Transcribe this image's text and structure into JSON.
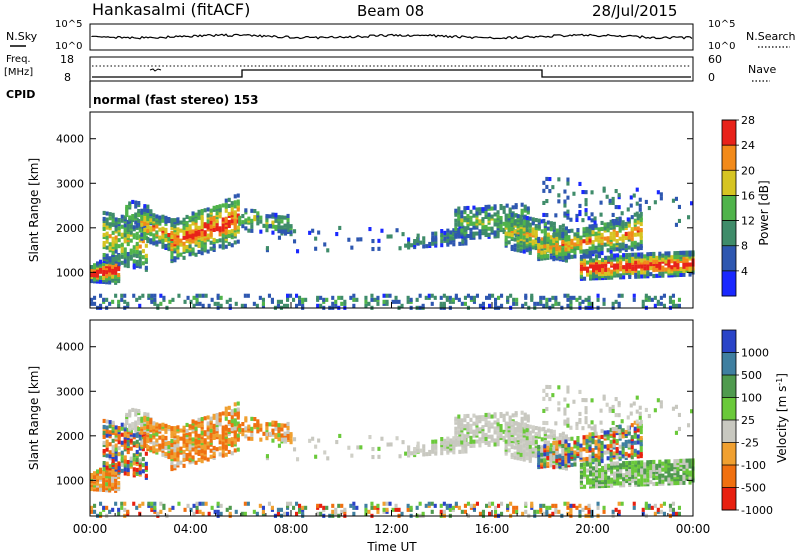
{
  "header": {
    "station": "Hankasalmi (fitACF)",
    "beam": "Beam 08",
    "date": "28/Jul/2015"
  },
  "noise_panel": {
    "left_label": "N.Sky",
    "right_label": "N.Search",
    "left_ticks": [
      "10^5",
      "10^0"
    ],
    "right_ticks": [
      "10^5",
      "10^0"
    ]
  },
  "freq_panel": {
    "left_label_1": "Freq.",
    "left_label_2": "[MHz]",
    "right_label": "Nave",
    "left_ticks": [
      "18",
      "8"
    ],
    "right_ticks": [
      "60",
      "0"
    ]
  },
  "cpid": {
    "label": "CPID",
    "mode": "normal (fast stereo) 153"
  },
  "chart_data": [
    {
      "type": "heatmap",
      "name": "power",
      "ylabel": "Slant Range [km]",
      "yticks": [
        1000,
        2000,
        3000,
        4000
      ],
      "ylim": [
        200,
        4600
      ],
      "xlim": [
        0,
        24
      ],
      "colorbar_label": "Power [dB]",
      "colorbar_ticks": [
        "4",
        "8",
        "12",
        "16",
        "20",
        "24",
        "28"
      ],
      "colors": [
        "#1a28ff",
        "#2e57b0",
        "#3f8c6a",
        "#4fb34a",
        "#d6c422",
        "#f28a1a",
        "#e8221a"
      ]
    },
    {
      "type": "heatmap",
      "name": "velocity",
      "ylabel": "Slant Range [km]",
      "xlabel": "Time UT",
      "yticks": [
        1000,
        2000,
        3000,
        4000
      ],
      "ylim": [
        200,
        4600
      ],
      "xlim": [
        0,
        24
      ],
      "xtick_labels": [
        "00:00",
        "04:00",
        "08:00",
        "12:00",
        "16:00",
        "20:00",
        "00:00"
      ],
      "colorbar_label": "Velocity [m s^-1]",
      "colorbar_ticks": [
        "1000",
        "500",
        "100",
        "25",
        "-25",
        "-100",
        "-500",
        "-1000"
      ],
      "colors": [
        "#2a44c8",
        "#3f7fa0",
        "#4f9a4e",
        "#6ac93a",
        "#c8c8c0",
        "#f0a030",
        "#f07010",
        "#e82010"
      ]
    }
  ]
}
